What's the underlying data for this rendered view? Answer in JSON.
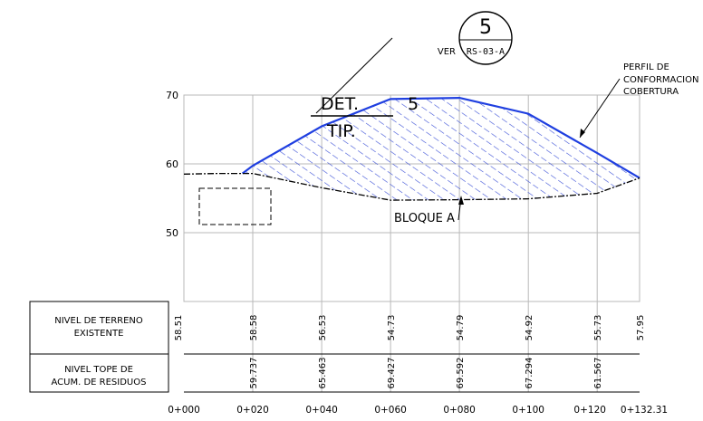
{
  "detail_ref": {
    "number": "5",
    "ver_label": "VER",
    "sheet_ref": "RS-03-A"
  },
  "det_callout": {
    "line1": "DET.",
    "number": "5",
    "line2": "TIP."
  },
  "annotation": {
    "line1": "PERFIL DE",
    "line2": "CONFORMACION",
    "line3": "COBERTURA"
  },
  "block_label": "BLOQUE A",
  "y_ticks": [
    "70",
    "60",
    "50"
  ],
  "table": {
    "row1_label_line1": "NIVEL DE TERRENO",
    "row1_label_line2": "EXISTENTE",
    "row2_label_line1": "NIVEL TOPE DE",
    "row2_label_line2": "ACUM. DE RESIDUOS"
  },
  "chart_data": {
    "type": "area",
    "ylim": [
      45,
      75
    ],
    "stations": [
      "0+000",
      "0+020",
      "0+040",
      "0+060",
      "0+080",
      "0+100",
      "0+120",
      "0+132.31"
    ],
    "existing_ground_values": [
      "58.51",
      "58.58",
      "56.53",
      "54.73",
      "54.79",
      "54.92",
      "55.73",
      "57.95"
    ],
    "existing_ground_x": [
      0,
      10,
      20,
      40,
      60,
      80,
      100,
      120,
      132.31
    ],
    "existing_ground_y": [
      58.51,
      58.6,
      58.6,
      56.53,
      54.73,
      54.79,
      54.92,
      55.73,
      57.95
    ],
    "residue_top_values": [
      "59.737",
      "65.463",
      "69.427",
      "69.592",
      "67.294",
      "61.567"
    ],
    "residue_top_x": [
      17,
      20,
      40,
      60,
      80,
      100,
      120,
      132.31
    ],
    "residue_top_y": [
      58.6,
      59.737,
      65.463,
      69.427,
      69.592,
      67.294,
      61.567,
      57.95
    ],
    "colors": {
      "fill": "#3a4fd6",
      "profile_line": "#1f3fe0",
      "ink": "#000000"
    }
  }
}
